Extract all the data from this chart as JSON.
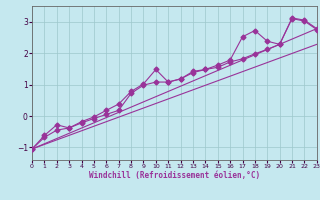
{
  "xlabel": "Windchill (Refroidissement éolien,°C)",
  "xlim": [
    0,
    23
  ],
  "ylim": [
    -1.4,
    3.5
  ],
  "yticks": [
    -1,
    0,
    1,
    2,
    3
  ],
  "xticks": [
    0,
    1,
    2,
    3,
    4,
    5,
    6,
    7,
    8,
    9,
    10,
    11,
    12,
    13,
    14,
    15,
    16,
    17,
    18,
    19,
    20,
    21,
    22,
    23
  ],
  "bg_color": "#c5e8ef",
  "line_color": "#993399",
  "grid_color": "#9ec8cc",
  "lw": 0.8,
  "ms": 2.5,
  "series1_x": [
    0,
    1,
    2,
    3,
    4,
    5,
    6,
    7,
    8,
    9,
    10,
    11,
    12,
    13,
    14,
    15,
    16,
    17,
    18,
    19,
    20,
    21,
    22,
    23
  ],
  "series1_y": [
    -1.05,
    -0.68,
    -0.45,
    -0.38,
    -0.22,
    -0.08,
    0.05,
    0.18,
    0.72,
    0.98,
    1.08,
    1.08,
    1.18,
    1.38,
    1.48,
    1.55,
    1.72,
    1.82,
    1.98,
    2.12,
    2.28,
    3.1,
    3.02,
    2.75
  ],
  "series2_x": [
    0,
    1,
    2,
    3,
    4,
    5,
    6,
    7,
    8,
    9,
    10,
    11,
    12,
    13,
    14,
    15,
    16,
    17,
    18,
    19,
    20,
    21,
    22,
    23
  ],
  "series2_y": [
    -1.05,
    -0.62,
    -0.28,
    -0.38,
    -0.18,
    -0.03,
    0.18,
    0.38,
    0.78,
    1.02,
    1.48,
    1.08,
    1.18,
    1.42,
    1.48,
    1.62,
    1.78,
    2.52,
    2.72,
    2.38,
    2.28,
    3.12,
    3.05,
    2.78
  ],
  "line1": [
    -1.05,
    2.78
  ],
  "line2": [
    -1.05,
    2.28
  ]
}
